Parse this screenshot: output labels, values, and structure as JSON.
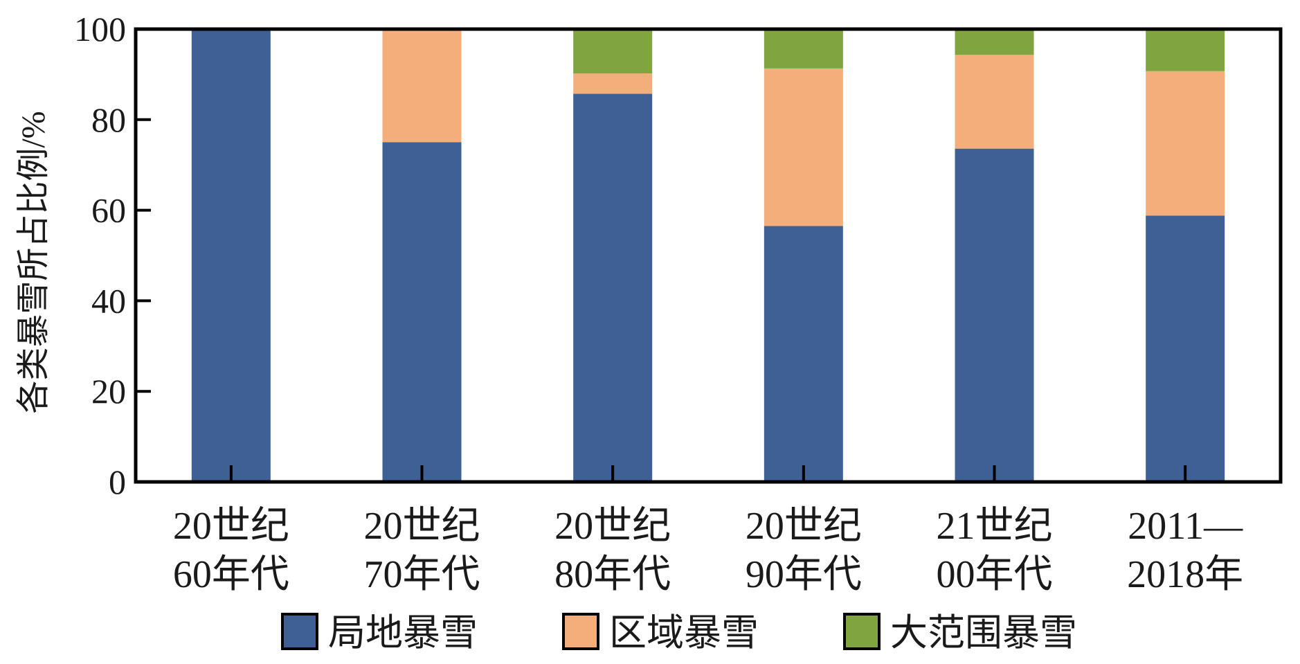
{
  "chart_data": {
    "type": "bar",
    "stacked": true,
    "title": "",
    "xlabel": "",
    "ylabel": "各类暴雪所占比例/%",
    "ylim": [
      0,
      100
    ],
    "yticks": [
      0,
      20,
      40,
      60,
      80,
      100
    ],
    "grid": false,
    "legend_position": "bottom",
    "categories": [
      [
        "20世纪",
        "60年代"
      ],
      [
        "20世纪",
        "70年代"
      ],
      [
        "20世纪",
        "80年代"
      ],
      [
        "20世纪",
        "90年代"
      ],
      [
        "21世纪",
        "00年代"
      ],
      [
        "2011—",
        "2018年"
      ]
    ],
    "series": [
      {
        "name": "局地暴雪",
        "color": "#3e6094",
        "values": [
          100,
          75,
          85.7,
          56.5,
          73.6,
          58.8
        ]
      },
      {
        "name": "区域暴雪",
        "color": "#f4ae7b",
        "values": [
          0,
          25,
          4.5,
          34.8,
          20.7,
          31.9
        ]
      },
      {
        "name": "大范围暴雪",
        "color": "#80a43f",
        "values": [
          0,
          0,
          9.8,
          8.7,
          5.7,
          9.3
        ]
      }
    ]
  }
}
